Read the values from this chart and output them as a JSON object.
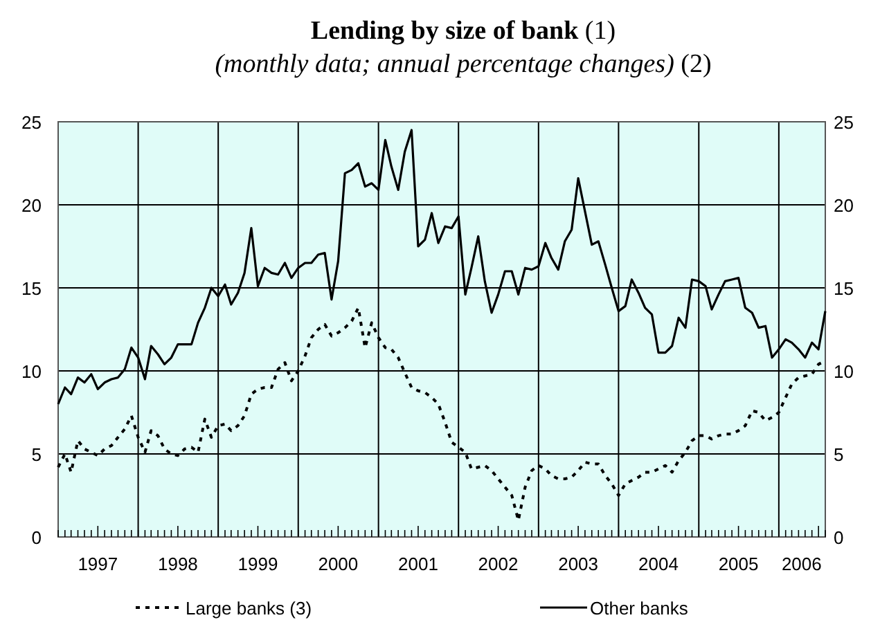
{
  "chart_data": {
    "type": "line",
    "title": "Lending by size of bank (1)",
    "subtitle": "(monthly data; annual percentage changes) (2)",
    "x": [
      "1997-01",
      "1997-02",
      "1997-03",
      "1997-04",
      "1997-05",
      "1997-06",
      "1997-07",
      "1997-08",
      "1997-09",
      "1997-10",
      "1997-11",
      "1997-12",
      "1998-01",
      "1998-02",
      "1998-03",
      "1998-04",
      "1998-05",
      "1998-06",
      "1998-07",
      "1998-08",
      "1998-09",
      "1998-10",
      "1998-11",
      "1998-12",
      "1999-01",
      "1999-02",
      "1999-03",
      "1999-04",
      "1999-05",
      "1999-06",
      "1999-07",
      "1999-08",
      "1999-09",
      "1999-10",
      "1999-11",
      "1999-12",
      "2000-01",
      "2000-02",
      "2000-03",
      "2000-04",
      "2000-05",
      "2000-06",
      "2000-07",
      "2000-08",
      "2000-09",
      "2000-10",
      "2000-11",
      "2000-12",
      "2001-01",
      "2001-02",
      "2001-03",
      "2001-04",
      "2001-05",
      "2001-06",
      "2001-07",
      "2001-08",
      "2001-09",
      "2001-10",
      "2001-11",
      "2001-12",
      "2002-01",
      "2002-02",
      "2002-03",
      "2002-04",
      "2002-05",
      "2002-06",
      "2002-07",
      "2002-08",
      "2002-09",
      "2002-10",
      "2002-11",
      "2002-12",
      "2003-01",
      "2003-02",
      "2003-03",
      "2003-04",
      "2003-05",
      "2003-06",
      "2003-07",
      "2003-08",
      "2003-09",
      "2003-10",
      "2003-11",
      "2003-12",
      "2004-01",
      "2004-02",
      "2004-03",
      "2004-04",
      "2004-05",
      "2004-06",
      "2004-07",
      "2004-08",
      "2004-09",
      "2004-10",
      "2004-11",
      "2004-12",
      "2005-01",
      "2005-02",
      "2005-03",
      "2005-04",
      "2005-05",
      "2005-06",
      "2005-07",
      "2005-08",
      "2005-09",
      "2005-10",
      "2005-11",
      "2005-12",
      "2006-01",
      "2006-02",
      "2006-03",
      "2006-04",
      "2006-05",
      "2006-06",
      "2006-07",
      "2006-08"
    ],
    "series": [
      {
        "name": "Large banks (3)",
        "color": "#000000",
        "line_style": "dashed",
        "values": [
          4.2,
          5.0,
          3.9,
          5.8,
          5.3,
          5.1,
          4.9,
          5.3,
          5.5,
          6.0,
          6.5,
          7.3,
          6.0,
          5.1,
          6.4,
          6.1,
          5.3,
          5.0,
          4.9,
          5.3,
          5.4,
          5.1,
          7.1,
          6.0,
          6.7,
          6.8,
          6.4,
          6.7,
          7.3,
          8.6,
          8.9,
          9.0,
          9.0,
          10.1,
          10.5,
          9.4,
          10.0,
          10.9,
          12.0,
          12.5,
          12.8,
          12.1,
          12.3,
          12.6,
          13.0,
          13.8,
          11.4,
          12.9,
          12.0,
          11.4,
          11.3,
          10.8,
          9.9,
          9.0,
          8.8,
          8.7,
          8.4,
          8.0,
          6.9,
          5.7,
          5.4,
          5.1,
          4.1,
          4.2,
          4.3,
          4.0,
          3.5,
          3.0,
          2.5,
          1.0,
          3.0,
          4.0,
          4.3,
          4.1,
          3.7,
          3.5,
          3.5,
          3.6,
          4.0,
          4.5,
          4.4,
          4.4,
          3.7,
          3.2,
          2.5,
          3.2,
          3.4,
          3.6,
          3.9,
          3.9,
          4.1,
          4.3,
          3.9,
          4.6,
          5.1,
          5.8,
          6.1,
          6.1,
          5.9,
          6.1,
          6.2,
          6.2,
          6.4,
          6.7,
          7.6,
          7.5,
          7.0,
          7.2,
          7.5,
          8.4,
          9.2,
          9.6,
          9.7,
          9.8,
          10.4,
          10.6
        ]
      },
      {
        "name": "Other banks",
        "color": "#000000",
        "line_style": "solid",
        "values": [
          8.0,
          9.0,
          8.6,
          9.6,
          9.3,
          9.8,
          8.9,
          9.3,
          9.5,
          9.6,
          10.1,
          11.4,
          10.8,
          9.5,
          11.5,
          11.0,
          10.4,
          10.8,
          11.6,
          11.6,
          11.6,
          12.9,
          13.8,
          15.0,
          14.5,
          15.2,
          14.0,
          14.7,
          15.9,
          18.6,
          15.1,
          16.2,
          15.9,
          15.8,
          16.5,
          15.6,
          16.2,
          16.5,
          16.5,
          17.0,
          17.1,
          14.3,
          16.6,
          21.9,
          22.1,
          22.5,
          21.1,
          21.3,
          20.9,
          23.9,
          22.3,
          20.9,
          23.2,
          24.5,
          17.5,
          17.9,
          19.5,
          17.7,
          18.7,
          18.6,
          19.3,
          14.6,
          16.2,
          18.1,
          15.4,
          13.5,
          14.6,
          16.0,
          16.0,
          14.6,
          16.2,
          16.1,
          16.3,
          17.7,
          16.8,
          16.1,
          17.8,
          18.5,
          21.6,
          19.6,
          17.6,
          17.8,
          16.4,
          15.0,
          13.6,
          13.9,
          15.5,
          14.7,
          13.8,
          13.4,
          11.1,
          11.1,
          11.5,
          13.2,
          12.6,
          15.5,
          15.4,
          15.1,
          13.7,
          14.6,
          15.4,
          15.5,
          15.6,
          13.8,
          13.5,
          12.6,
          12.7,
          10.8,
          11.3,
          11.9,
          11.7,
          11.3,
          10.8,
          11.7,
          11.3,
          13.6
        ]
      }
    ],
    "xlim": [
      "1997-01",
      "2006-08"
    ],
    "xticks": [
      {
        "value": "1997-07",
        "label": "1997"
      },
      {
        "value": "1998-01",
        "label": null
      },
      {
        "value": "1998-07",
        "label": "1998"
      },
      {
        "value": "1999-01",
        "label": null
      },
      {
        "value": "1999-07",
        "label": "1999"
      },
      {
        "value": "2000-01",
        "label": null
      },
      {
        "value": "2000-07",
        "label": "2000"
      },
      {
        "value": "2001-01",
        "label": null
      },
      {
        "value": "2001-07",
        "label": "2001"
      },
      {
        "value": "2002-01",
        "label": null
      },
      {
        "value": "2002-07",
        "label": "2002"
      },
      {
        "value": "2003-01",
        "label": null
      },
      {
        "value": "2003-07",
        "label": "2003"
      },
      {
        "value": "2004-01",
        "label": null
      },
      {
        "value": "2004-07",
        "label": "2004"
      },
      {
        "value": "2005-01",
        "label": null
      },
      {
        "value": "2005-07",
        "label": "2005"
      },
      {
        "value": "2006-01",
        "label": null
      },
      {
        "value": "2006-04-15",
        "label": "2006"
      }
    ],
    "ylim": [
      0,
      25
    ],
    "yticks": [
      0,
      5,
      10,
      15,
      20,
      25
    ],
    "y2lim": [
      0,
      25
    ],
    "y2ticks": [
      0,
      5,
      10,
      15,
      20,
      25
    ],
    "grid": true,
    "legend": "bottom",
    "marker": "none"
  }
}
